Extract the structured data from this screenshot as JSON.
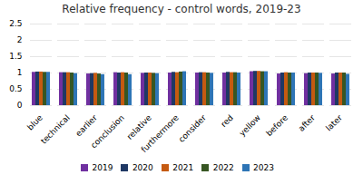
{
  "chart_data": {
    "type": "bar",
    "title": "Relative frequency - control words, 2019-23",
    "categories": [
      "blue",
      "technical",
      "earlier",
      "conclusion",
      "relative",
      "furthermore",
      "consider",
      "red",
      "yellow",
      "before",
      "after",
      "later"
    ],
    "series": [
      {
        "name": "2019",
        "color": "#7030A0",
        "values": [
          1.02,
          1.01,
          0.97,
          1.01,
          0.99,
          1.0,
          1.0,
          1.0,
          1.04,
          0.97,
          0.98,
          0.97
        ]
      },
      {
        "name": "2020",
        "color": "#1F3864",
        "values": [
          1.03,
          1.01,
          0.98,
          1.0,
          1.0,
          1.02,
          1.01,
          1.02,
          1.05,
          1.0,
          1.0,
          1.0
        ]
      },
      {
        "name": "2021",
        "color": "#C55A11",
        "values": [
          1.03,
          1.01,
          0.99,
          1.01,
          1.0,
          1.01,
          1.01,
          1.01,
          1.05,
          1.01,
          1.0,
          1.0
        ]
      },
      {
        "name": "2022",
        "color": "#375623",
        "values": [
          1.02,
          1.0,
          0.97,
          1.0,
          0.99,
          1.03,
          1.0,
          1.01,
          1.04,
          1.0,
          1.0,
          1.0
        ]
      },
      {
        "name": "2023",
        "color": "#2E75B6",
        "values": [
          1.02,
          0.98,
          0.95,
          0.95,
          0.98,
          1.04,
          0.99,
          1.0,
          1.04,
          1.0,
          0.99,
          0.96
        ]
      }
    ],
    "ylim": [
      0,
      2.5
    ],
    "yticks": [
      0,
      0.5,
      1.0,
      1.5,
      2.0,
      2.5
    ],
    "grid": true,
    "legend": "bottom"
  }
}
